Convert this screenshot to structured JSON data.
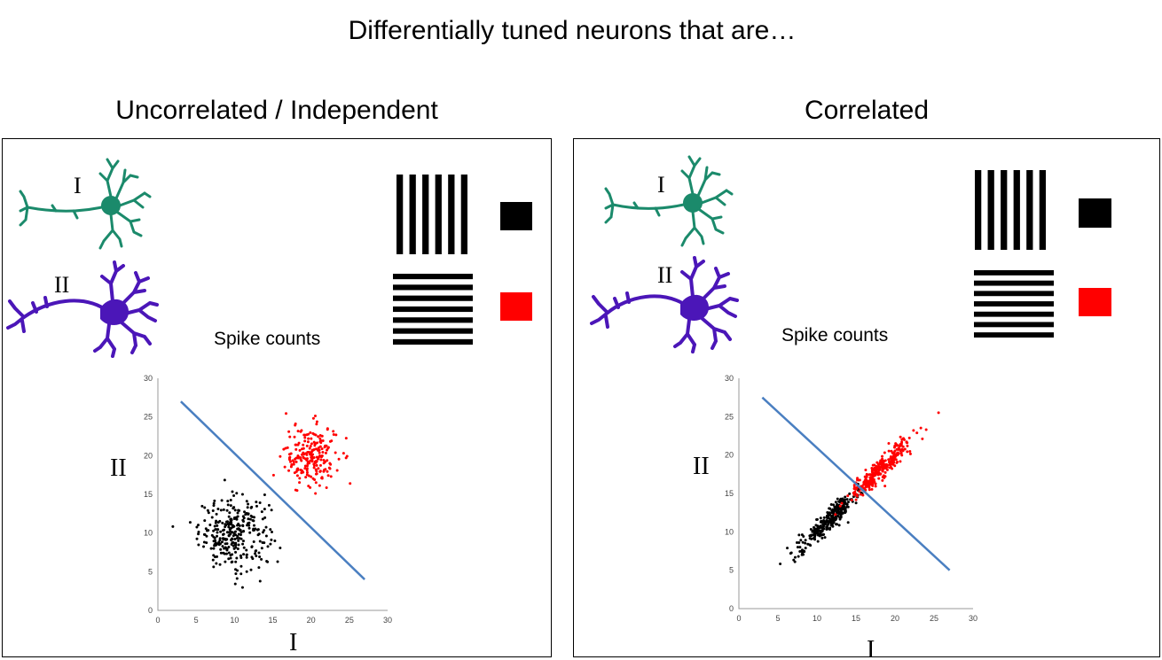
{
  "title": "Differentially tuned neurons that are…",
  "colors": {
    "neuron_I": "#1b8a6b",
    "neuron_II": "#4b16b8",
    "red": "#ff0000",
    "black": "#000000",
    "line": "#4a7fc1"
  },
  "panels": [
    {
      "title": "Uncorrelated / Independent",
      "neuron_I_label": "I",
      "neuron_II_label": "II",
      "spike_label": "Spike counts",
      "y_axis_letter": "II",
      "x_axis_letter": "I"
    },
    {
      "title": "Correlated",
      "neuron_I_label": "I",
      "neuron_II_label": "II",
      "spike_label": "Spike counts",
      "y_axis_letter": "II",
      "x_axis_letter": "I"
    }
  ],
  "chart_data": [
    {
      "type": "scatter",
      "xlim": [
        0,
        30
      ],
      "ylim": [
        0,
        30
      ],
      "ticks": [
        0,
        5,
        10,
        15,
        20,
        25,
        30
      ],
      "xlabel": "I",
      "ylabel": "II",
      "series": [
        {
          "color": "#000000",
          "center": [
            10,
            10
          ],
          "spread": [
            2.3,
            2.3
          ],
          "correlation": 0.0,
          "count": 300
        },
        {
          "color": "#ff0000",
          "center": [
            20,
            20
          ],
          "spread": [
            1.7,
            2.0
          ],
          "correlation": 0.0,
          "count": 220
        }
      ],
      "boundary": [
        [
          3,
          27
        ],
        [
          27,
          4
        ]
      ]
    },
    {
      "type": "scatter",
      "xlim": [
        0,
        30
      ],
      "ylim": [
        0,
        30
      ],
      "ticks": [
        0,
        5,
        10,
        15,
        20,
        25,
        30
      ],
      "xlabel": "I",
      "ylabel": "II",
      "series": [
        {
          "color": "#000000",
          "center": [
            11.5,
            11.5
          ],
          "spread": [
            2.0,
            2.0
          ],
          "correlation": 0.93,
          "count": 300
        },
        {
          "color": "#ff0000",
          "center": [
            18,
            18
          ],
          "spread": [
            2.0,
            2.0
          ],
          "correlation": 0.93,
          "count": 300
        }
      ],
      "boundary": [
        [
          3,
          27.5
        ],
        [
          27,
          5
        ]
      ]
    }
  ]
}
